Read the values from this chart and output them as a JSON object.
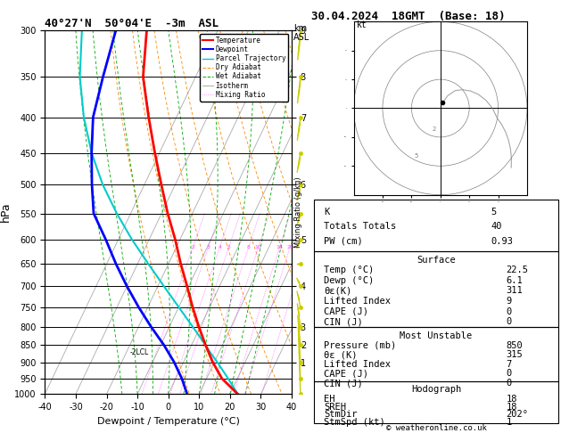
{
  "title_left": "40°27'N  50°04'E  -3m  ASL",
  "title_right": "30.04.2024  18GMT  (Base: 18)",
  "xlabel": "Dewpoint / Temperature (°C)",
  "ylabel_left": "hPa",
  "ylabel_right_top": "km",
  "ylabel_right_bottom": "ASL",
  "background_color": "#ffffff",
  "plot_bg": "#ffffff",
  "P_min": 300,
  "P_max": 1000,
  "T_min": -40,
  "T_max": 40,
  "skew": 56.0,
  "pressure_levels": [
    300,
    350,
    400,
    450,
    500,
    550,
    600,
    650,
    700,
    750,
    800,
    850,
    900,
    950,
    1000
  ],
  "isotherms_T": [
    -40,
    -30,
    -20,
    -10,
    0,
    10,
    20,
    30,
    40
  ],
  "dry_adiabats_theta": [
    280,
    290,
    300,
    310,
    320,
    330,
    340,
    350,
    360,
    370,
    380
  ],
  "wet_adiabats_T0": [
    -15,
    -10,
    -5,
    0,
    5,
    10,
    15,
    20,
    25
  ],
  "mixing_ratio_lines": [
    2,
    3,
    4,
    5,
    8,
    10,
    16,
    20,
    28
  ],
  "km_ticks": {
    "300": "9",
    "350": "8",
    "400": "7",
    "500": "6",
    "600": "5",
    "700": "4",
    "800": "3",
    "850": "2",
    "900": "1"
  },
  "temp_data": {
    "pressure": [
      1000,
      950,
      900,
      850,
      800,
      750,
      700,
      650,
      600,
      550,
      500,
      450,
      400,
      350,
      300
    ],
    "temperature": [
      22.5,
      15.0,
      9.5,
      4.5,
      -0.5,
      -5.5,
      -10.5,
      -16.0,
      -21.5,
      -28.0,
      -34.5,
      -41.5,
      -49.0,
      -57.0,
      -63.0
    ],
    "dewpoint": [
      6.1,
      2.0,
      -3.0,
      -9.0,
      -16.0,
      -23.0,
      -30.0,
      -37.0,
      -44.0,
      -52.0,
      -57.0,
      -62.0,
      -67.0,
      -70.0,
      -73.0
    ]
  },
  "parcel_data": {
    "pressure": [
      1000,
      950,
      900,
      870,
      850,
      800,
      750,
      700,
      650,
      600,
      550,
      500,
      450,
      400,
      350,
      300
    ],
    "temperature": [
      22.5,
      17.0,
      11.0,
      7.0,
      4.5,
      -2.5,
      -10.0,
      -18.0,
      -26.5,
      -35.5,
      -44.5,
      -53.5,
      -62.0,
      -70.0,
      -77.5,
      -84.0
    ]
  },
  "lcl_pressure": 870,
  "wind_data": {
    "pressure": [
      1000,
      950,
      900,
      850,
      800,
      750,
      700,
      650,
      600,
      550,
      500,
      450,
      400,
      350,
      300
    ],
    "speed": [
      2,
      5,
      8,
      10,
      12,
      14,
      16,
      18,
      20,
      22,
      24,
      26,
      28,
      30,
      32
    ],
    "direction": [
      202,
      210,
      220,
      230,
      240,
      250,
      260,
      270,
      280,
      285,
      290,
      295,
      300,
      305,
      310
    ]
  },
  "table_data": {
    "K": 5,
    "Totals Totals": 40,
    "PW (cm)": 0.93,
    "Surface_Temp": 22.5,
    "Surface_Dewp": 6.1,
    "Surface_the": 311,
    "Surface_LI": 9,
    "Surface_CAPE": 0,
    "Surface_CIN": 0,
    "MU_Pressure": 850,
    "MU_the": 315,
    "MU_LI": 7,
    "MU_CAPE": 0,
    "MU_CIN": 0,
    "Hodo_EH": 18,
    "Hodo_SREH": 18,
    "Hodo_StmDir": "202°",
    "Hodo_StmSpd": 1
  },
  "colors": {
    "temperature": "#ff0000",
    "dewpoint": "#0000ff",
    "parcel": "#00cccc",
    "dry_adiabat": "#ff8800",
    "wet_adiabat": "#00aa00",
    "isotherm": "#aaaaaa",
    "mixing_ratio": "#ff44ff",
    "isobar": "#000000",
    "wind_barb": "#cccc00",
    "hodograph": "#888888"
  }
}
